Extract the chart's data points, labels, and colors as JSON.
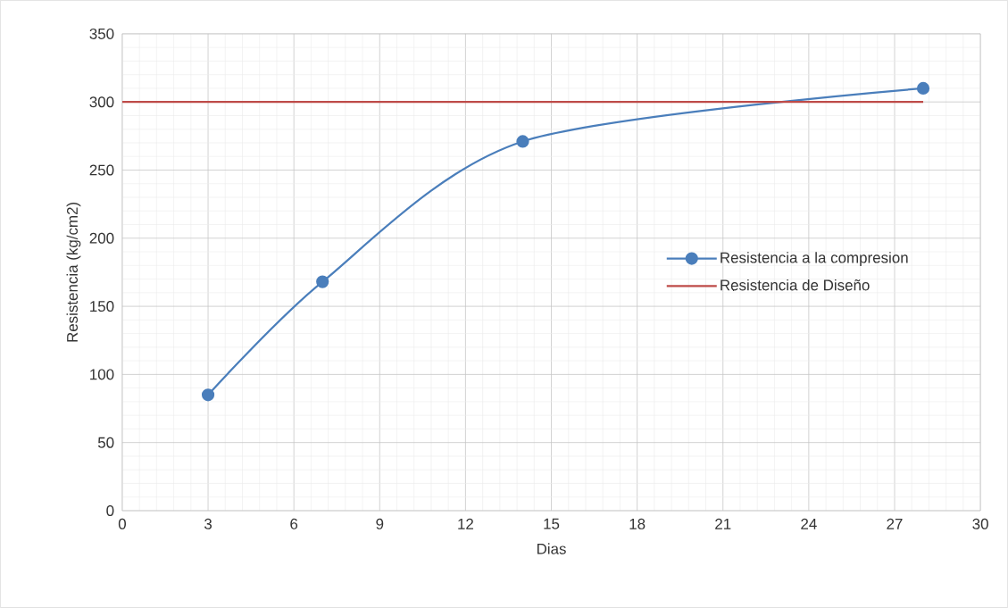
{
  "chart_data": {
    "type": "line",
    "xlabel": "Dias",
    "ylabel": "Resistencia (kg/cm2)",
    "xlim": [
      0,
      30
    ],
    "ylim": [
      0,
      350
    ],
    "xticks": [
      0,
      3,
      6,
      9,
      12,
      15,
      18,
      21,
      24,
      27,
      30
    ],
    "yticks": [
      0,
      50,
      100,
      150,
      200,
      250,
      300,
      350
    ],
    "grid": true,
    "legend": "right",
    "line_style": "solid",
    "series": [
      {
        "name": "Resistencia a la compresion",
        "color": "#4a7ebb",
        "marker": "circle",
        "x": [
          3,
          7,
          14,
          28
        ],
        "values": [
          85,
          168,
          271,
          310
        ]
      },
      {
        "name": "Resistencia de Diseño",
        "color": "#be4b48",
        "marker": "none",
        "x": [
          0,
          28
        ],
        "values": [
          300,
          300
        ]
      }
    ]
  }
}
